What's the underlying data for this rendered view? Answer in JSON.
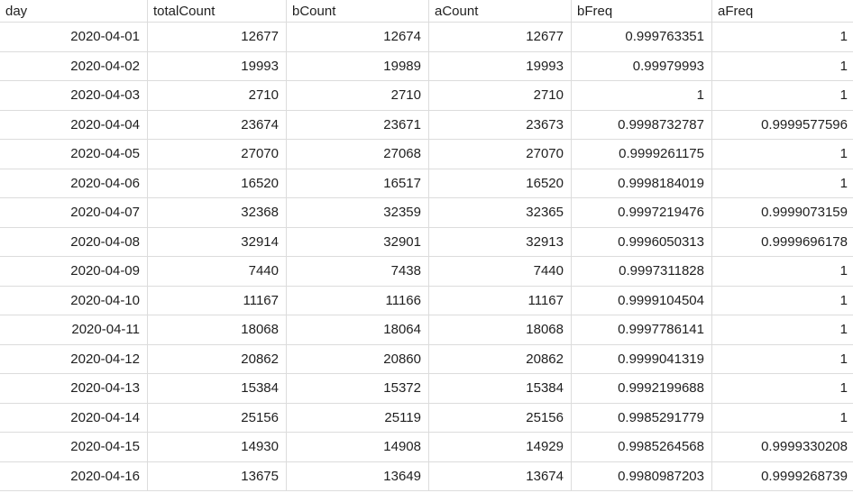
{
  "columns": [
    "day",
    "totalCount",
    "bCount",
    "aCount",
    "bFreq",
    "aFreq"
  ],
  "rows": [
    [
      "2020-04-01",
      "12677",
      "12674",
      "12677",
      "0.999763351",
      "1"
    ],
    [
      "2020-04-02",
      "19993",
      "19989",
      "19993",
      "0.99979993",
      "1"
    ],
    [
      "2020-04-03",
      "2710",
      "2710",
      "2710",
      "1",
      "1"
    ],
    [
      "2020-04-04",
      "23674",
      "23671",
      "23673",
      "0.9998732787",
      "0.9999577596"
    ],
    [
      "2020-04-05",
      "27070",
      "27068",
      "27070",
      "0.9999261175",
      "1"
    ],
    [
      "2020-04-06",
      "16520",
      "16517",
      "16520",
      "0.9998184019",
      "1"
    ],
    [
      "2020-04-07",
      "32368",
      "32359",
      "32365",
      "0.9997219476",
      "0.9999073159"
    ],
    [
      "2020-04-08",
      "32914",
      "32901",
      "32913",
      "0.9996050313",
      "0.9999696178"
    ],
    [
      "2020-04-09",
      "7440",
      "7438",
      "7440",
      "0.9997311828",
      "1"
    ],
    [
      "2020-04-10",
      "11167",
      "11166",
      "11167",
      "0.9999104504",
      "1"
    ],
    [
      "2020-04-11",
      "18068",
      "18064",
      "18068",
      "0.9997786141",
      "1"
    ],
    [
      "2020-04-12",
      "20862",
      "20860",
      "20862",
      "0.9999041319",
      "1"
    ],
    [
      "2020-04-13",
      "15384",
      "15372",
      "15384",
      "0.9992199688",
      "1"
    ],
    [
      "2020-04-14",
      "25156",
      "25119",
      "25156",
      "0.9985291779",
      "1"
    ],
    [
      "2020-04-15",
      "14930",
      "14908",
      "14929",
      "0.9985264568",
      "0.9999330208"
    ],
    [
      "2020-04-16",
      "13675",
      "13649",
      "13674",
      "0.9980987203",
      "0.9999268739"
    ]
  ]
}
